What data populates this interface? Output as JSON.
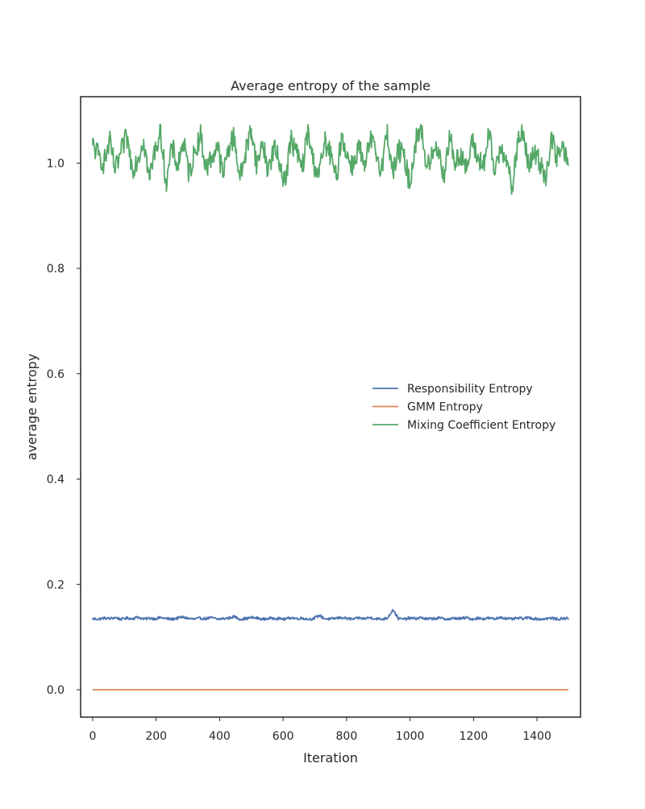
{
  "chart_data": {
    "type": "line",
    "title": "Average entropy of the sample",
    "xlabel": "Iteration",
    "ylabel": "average entropy",
    "xlim": [
      -38,
      1537
    ],
    "ylim": [
      -0.052,
      1.126
    ],
    "xticks": [
      0,
      200,
      400,
      600,
      800,
      1000,
      1200,
      1400
    ],
    "xtick_labels": [
      "0",
      "200",
      "400",
      "600",
      "800",
      "1000",
      "1200",
      "1400"
    ],
    "yticks": [
      0.0,
      0.2,
      0.4,
      0.6,
      0.8,
      1.0
    ],
    "ytick_labels": [
      "0.0",
      "0.2",
      "0.4",
      "0.6",
      "0.8",
      "1.0"
    ],
    "grid": false,
    "legend_position": "center-right",
    "series": [
      {
        "name": "Responsibility Entropy",
        "color": "#4c72b0",
        "x_start": 0,
        "x_end": 1499,
        "baseline": 0.135,
        "noise": 0.0025,
        "spike_range": [
          0.136,
          0.152
        ],
        "values": [
          0.135,
          0.134,
          0.136,
          0.135,
          0.137,
          0.134,
          0.136,
          0.135,
          0.138,
          0.134,
          0.136,
          0.135,
          0.137,
          0.135,
          0.134,
          0.136,
          0.138,
          0.135,
          0.134,
          0.136,
          0.135,
          0.137,
          0.134,
          0.135,
          0.136,
          0.139,
          0.134,
          0.135,
          0.137,
          0.136,
          0.134,
          0.135,
          0.136,
          0.135,
          0.134,
          0.137,
          0.135,
          0.136,
          0.134,
          0.135,
          0.141,
          0.135,
          0.134,
          0.136,
          0.137,
          0.135,
          0.134,
          0.136,
          0.135,
          0.137,
          0.135,
          0.134,
          0.136,
          0.152,
          0.135,
          0.134,
          0.136,
          0.135,
          0.137,
          0.134,
          0.135,
          0.136,
          0.135,
          0.134,
          0.136,
          0.135,
          0.137,
          0.134,
          0.136,
          0.135,
          0.136,
          0.134,
          0.138,
          0.135,
          0.134,
          0.136,
          0.135,
          0.137,
          0.135,
          0.134,
          0.135,
          0.136,
          0.134,
          0.135,
          0.136
        ]
      },
      {
        "name": "GMM Entropy",
        "color": "#dd8452",
        "x": [
          0,
          1499
        ],
        "values": [
          0.0,
          0.0
        ]
      },
      {
        "name": "Mixing Coefficient Entropy",
        "color": "#55a868",
        "x_start": 0,
        "x_end": 1499,
        "baseline": 1.015,
        "noise": 0.022,
        "range": [
          0.937,
          1.073
        ],
        "values": [
          1.035,
          1.015,
          1.0,
          1.04,
          0.985,
          1.02,
          1.05,
          0.99,
          1.01,
          1.045,
          0.97,
          1.025,
          1.06,
          0.96,
          1.03,
          0.995,
          1.04,
          0.98,
          1.02,
          1.055,
          0.99,
          1.01,
          1.035,
          0.975,
          1.03,
          1.05,
          0.97,
          1.02,
          1.065,
          0.995,
          1.04,
          0.985,
          1.03,
          1.0,
          0.965,
          1.045,
          1.02,
          0.99,
          1.06,
          1.0,
          0.98,
          1.04,
          1.015,
          0.97,
          1.055,
          1.01,
          0.995,
          1.035,
          0.985,
          1.045,
          1.02,
          0.99,
          1.06,
          0.98,
          1.025,
          1.01,
          0.96,
          1.04,
          1.07,
          0.99,
          1.015,
          1.03,
          0.975,
          1.05,
          1.0,
          1.02,
          0.985,
          1.04,
          1.01,
          0.995,
          1.055,
          0.98,
          1.03,
          1.015,
          0.945,
          1.035,
          1.06,
          0.99,
          1.02,
          1.0,
          0.975,
          1.045,
          1.01,
          1.03,
          0.995
        ]
      }
    ]
  }
}
